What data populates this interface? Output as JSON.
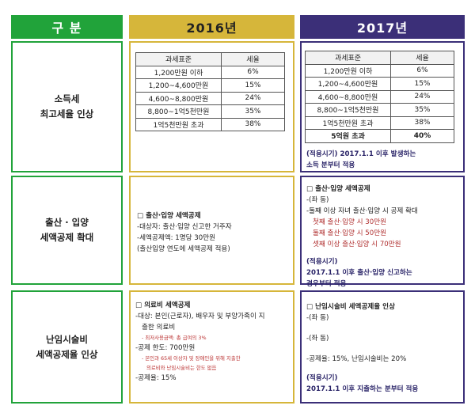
{
  "headers": {
    "category": "구 분",
    "y2016": "2016년",
    "y2017": "2017년"
  },
  "rows": [
    {
      "label_line1": "소득세",
      "label_line2": "최고세율 인상"
    },
    {
      "label_line1": "출산 · 입양",
      "label_line2": "세액공제 확대"
    },
    {
      "label_line1": "난임시술비",
      "label_line2": "세액공제율 인상"
    }
  ],
  "tax_table": {
    "col_base": "과세표준",
    "col_rate": "세율",
    "rows_2016": [
      {
        "base": "1,200만원 이하",
        "rate": "6%"
      },
      {
        "base": "1,200~4,600만원",
        "rate": "15%"
      },
      {
        "base": "4,600~8,800만원",
        "rate": "24%"
      },
      {
        "base": "8,800~1억5천만원",
        "rate": "35%"
      },
      {
        "base": "1억5천만원 초과",
        "rate": "38%"
      }
    ],
    "rows_2017": [
      {
        "base": "1,200만원 이하",
        "rate": "6%"
      },
      {
        "base": "1,200~4,600만원",
        "rate": "15%"
      },
      {
        "base": "4,600~8,800만원",
        "rate": "24%"
      },
      {
        "base": "8,800~1억5천만원",
        "rate": "35%"
      },
      {
        "base": "1억5천만원 초과",
        "rate": "38%"
      },
      {
        "base": "5억원 초과",
        "rate": "40%"
      }
    ],
    "note_2017_line1": "(적용시기) 2017.1.1 이후 발생하는",
    "note_2017_line2": "소득 분부터 적용"
  },
  "birth_2016": {
    "title": "□ 출산·입양 세액공제",
    "line1": "-대상자: 출산·입양 신고한 거주자",
    "line2": "-세액공제액: 1명당 30만원",
    "line3": "(출산입양 연도에 세액공제 적용)"
  },
  "birth_2017": {
    "title": "□ 출산·입양 세액공제",
    "line1": "-(좌 동)",
    "line2": "-둘째 이상 자녀 출산·입양 시 공제 확대",
    "red1": "첫째 출산·입양 시 30만원",
    "red2": "둘째 출산·입양 시 50만원",
    "red3": "셋째 이상 출산·입양 시 70만원",
    "note1": "(적용시기)",
    "note2": "2017.1.1 이후 출산·입양 신고하는",
    "note3": "경우부터 적용"
  },
  "ivf_2016": {
    "title": "□ 의료비 세액공제",
    "line1": "-대상: 본인(근로자), 배우자 및 부양가족이 지",
    "line2": "출한 의료비",
    "tiny1": "- 최저사용금액: 총 급여의 3%",
    "line3": "-공제 한도: 700만원",
    "tiny2": "- 본인과 65세 이상자 및 장애인을 위해 지출한",
    "tiny3": "의료비와 난임시술비는 한도 없음",
    "line4": "-공제율: 15%"
  },
  "ivf_2017": {
    "title": "□ 난임시술비 세액공제율 인상",
    "line1": "-(좌 동)",
    "line2": "-(좌 동)",
    "line3": "-공제율: 15%, 난임시술비는 20%",
    "note1": "(적용시기)",
    "note2": "2017.1.1 이후 지출하는 분부터 적용"
  }
}
